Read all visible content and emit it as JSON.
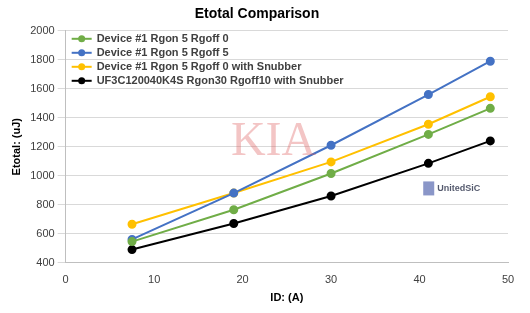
{
  "chart_data": {
    "type": "line",
    "title": "Etotal Comparison",
    "x_label": "ID: (A)",
    "y_label": "Etotal: (uJ)",
    "x": [
      7.5,
      19,
      30,
      41,
      48
    ],
    "series": [
      {
        "name": "Device #1 Rgon 5 Rgoff 0",
        "color": "#70ad47",
        "values": [
          545,
          765,
          1015,
          1285,
          1465
        ]
      },
      {
        "name": "Device #1 Rgon 5 Rgoff 5",
        "color": "#4472c4",
        "values": [
          560,
          880,
          1210,
          1560,
          1790
        ]
      },
      {
        "name": "Device #1 Rgon 5 Rgoff 0 with Snubber",
        "color": "#ffc000",
        "values": [
          665,
          880,
          1095,
          1355,
          1545
        ]
      },
      {
        "name": "UF3C120040K4S Rgon30 Rgoff10 with Snubber",
        "color": "#000000",
        "values": [
          490,
          670,
          860,
          1085,
          1240
        ]
      }
    ],
    "xlim": [
      0,
      50
    ],
    "xticks": [
      0,
      10,
      20,
      30,
      40,
      50
    ],
    "ylim": [
      400,
      2000
    ],
    "yticks": [
      400,
      600,
      800,
      1000,
      1200,
      1400,
      1600,
      1800,
      2000
    ],
    "grid": true,
    "legend": "upper left",
    "marker": "circle",
    "line_style": "solid",
    "annotations": [
      "KIA",
      "UnitedSiC"
    ]
  }
}
